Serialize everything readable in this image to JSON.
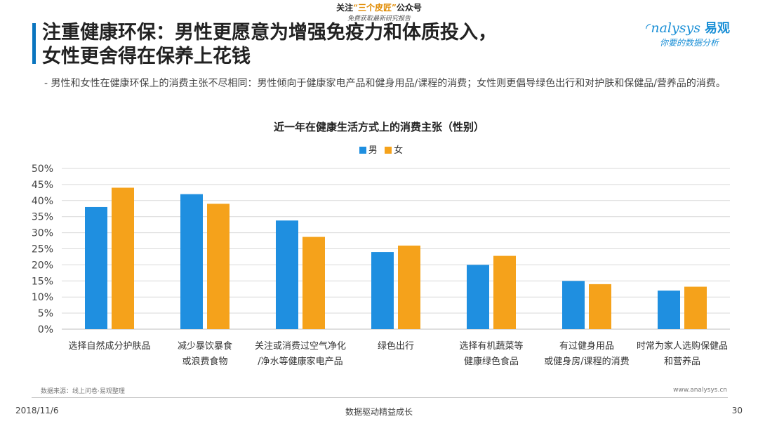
{
  "banner": {
    "line1_a": "关注",
    "line1_hl": "“三个皮匠”",
    "line1_b": "公众号",
    "line2": "免费获取最新研究报告"
  },
  "title_line1": "注重健康环保：男性更愿意为增强免疫力和体质投入，",
  "title_line2": "女性更舍得在保养上花钱",
  "logo": {
    "brand": "nalysys",
    "brand_cn": "易观",
    "tagline": "你要的数据分析"
  },
  "subtitle": "-  男性和女性在健康环保上的消费主张不尽相同：男性倾向于健康家电产品和健身用品/课程的消费；女性则更倡导绿色出行和对护肤和保健品/营养品的消费。",
  "colors": {
    "male": "#1f8fe0",
    "female": "#f5a21b",
    "accent": "#0a75bf",
    "grid": "#d9d9d9"
  },
  "chart_data": {
    "type": "bar",
    "title": "近一年在健康生活方式上的消费主张（性别）",
    "legend_position": "top-center",
    "grid": true,
    "ylim": [
      0,
      0.5
    ],
    "yticks": [
      "0%",
      "5%",
      "10%",
      "15%",
      "20%",
      "25%",
      "30%",
      "35%",
      "40%",
      "45%",
      "50%"
    ],
    "categories": [
      [
        "选择自然成分护肤品"
      ],
      [
        "减少暴饮暴食",
        "或浪费食物"
      ],
      [
        "关注或消费过空气净化",
        "/净水等健康家电产品"
      ],
      [
        "绿色出行"
      ],
      [
        "选择有机蔬菜等",
        "健康绿色食品"
      ],
      [
        "有过健身用品",
        "或健身房/课程的消费"
      ],
      [
        "时常为家人选购保健品",
        "和营养品"
      ]
    ],
    "series": [
      {
        "name": "男",
        "values": [
          0.38,
          0.42,
          0.338,
          0.24,
          0.2,
          0.15,
          0.12
        ]
      },
      {
        "name": "女",
        "values": [
          0.44,
          0.39,
          0.287,
          0.26,
          0.228,
          0.14,
          0.132
        ]
      }
    ]
  },
  "footer": {
    "source": "数据来源：线上问卷·易观整理",
    "url": "www.analysys.cn",
    "date": "2018/11/6",
    "slogan": "数据驱动精益成长",
    "page": "30"
  }
}
